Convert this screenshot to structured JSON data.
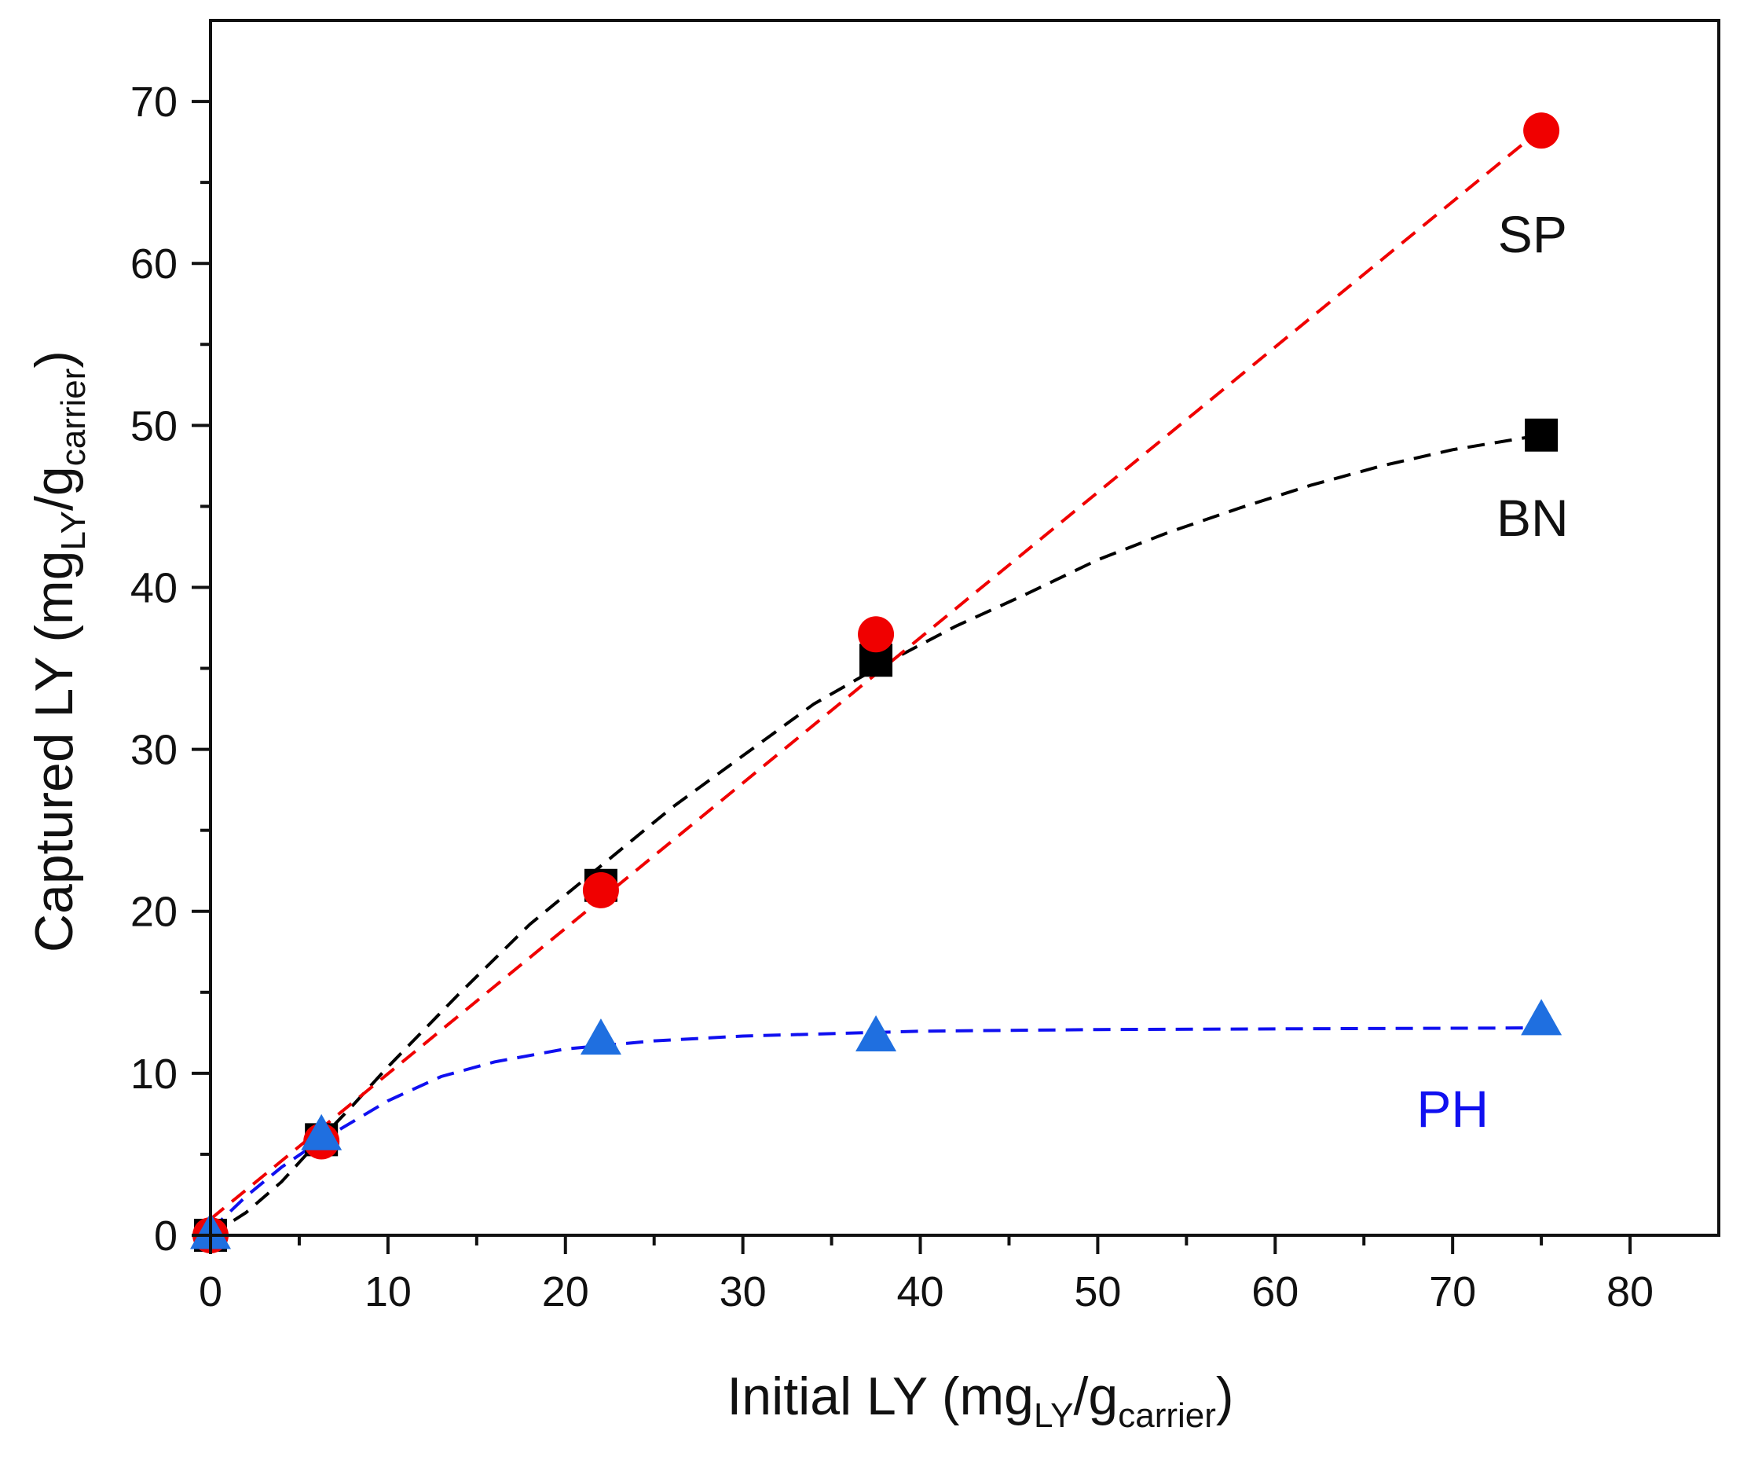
{
  "chart_data": {
    "type": "scatter",
    "title": "",
    "xlabel": "Initial LY (mgLY/gcarrier)",
    "ylabel": "Captured LY (mgLY/gcarrier)",
    "xlabel_parts": {
      "main": "Initial LY (mg",
      "sub1": "LY",
      "mid": "/g",
      "sub2": "carrier",
      "end": ")"
    },
    "ylabel_parts": {
      "main": "Captured LY (mg",
      "sub1": "LY",
      "mid": "/g",
      "sub2": "carrier",
      "end": ")"
    },
    "xlim": [
      0,
      85
    ],
    "ylim": [
      0,
      75
    ],
    "xticks": [
      0,
      10,
      20,
      30,
      40,
      50,
      60,
      70,
      80
    ],
    "yticks": [
      0,
      10,
      20,
      30,
      40,
      50,
      60,
      70
    ],
    "xtick_labels": [
      "0",
      "10",
      "20",
      "30",
      "40",
      "50",
      "60",
      "70",
      "80"
    ],
    "ytick_labels": [
      "0",
      "10",
      "20",
      "30",
      "40",
      "50",
      "60",
      "70"
    ],
    "grid": false,
    "series": [
      {
        "name": "BN",
        "label": "BN",
        "marker": "square",
        "color": "#000000",
        "label_color": "#111111",
        "label_at": [
          74.5,
          44.3
        ],
        "x": [
          0,
          6.25,
          22,
          37.5,
          75
        ],
        "y": [
          0,
          5.9,
          21.6,
          35.5,
          49.4
        ],
        "fit": [
          [
            0,
            0
          ],
          [
            2,
            1.4
          ],
          [
            4,
            3.3
          ],
          [
            6,
            5.7
          ],
          [
            8,
            8.0
          ],
          [
            10,
            10.4
          ],
          [
            14,
            14.9
          ],
          [
            18,
            19.2
          ],
          [
            22,
            22.8
          ],
          [
            26,
            26.4
          ],
          [
            30,
            29.6
          ],
          [
            34,
            32.8
          ],
          [
            38,
            35.3
          ],
          [
            42,
            37.6
          ],
          [
            46,
            39.6
          ],
          [
            50,
            41.7
          ],
          [
            54,
            43.4
          ],
          [
            58,
            44.9
          ],
          [
            62,
            46.3
          ],
          [
            66,
            47.5
          ],
          [
            70,
            48.5
          ],
          [
            75,
            49.4
          ]
        ]
      },
      {
        "name": "SP",
        "label": "SP",
        "marker": "circle",
        "color": "#f00000",
        "label_color": "#111111",
        "label_at": [
          74.5,
          61.8
        ],
        "x": [
          0,
          6.25,
          22,
          37.5,
          75
        ],
        "y": [
          0,
          5.8,
          21.3,
          37.1,
          68.2
        ],
        "fit": [
          [
            0,
            1.0
          ],
          [
            75,
            68.3
          ]
        ]
      },
      {
        "name": "PH",
        "label": "PH",
        "marker": "triangle",
        "color": "#1f6fe0",
        "line_color": "#1010f0",
        "label_color": "#1010f0",
        "label_at": [
          70,
          7.8
        ],
        "x": [
          0,
          6.25,
          22,
          37.5,
          75
        ],
        "y": [
          0,
          6.1,
          12.0,
          12.2,
          13.2
        ],
        "fit": [
          [
            0,
            0.3
          ],
          [
            2,
            2.4
          ],
          [
            4,
            4.2
          ],
          [
            6,
            5.7
          ],
          [
            8,
            7.0
          ],
          [
            10,
            8.3
          ],
          [
            13,
            9.8
          ],
          [
            16,
            10.7
          ],
          [
            20,
            11.5
          ],
          [
            25,
            12.0
          ],
          [
            30,
            12.3
          ],
          [
            40,
            12.6
          ],
          [
            50,
            12.7
          ],
          [
            75,
            12.8
          ]
        ]
      }
    ]
  }
}
